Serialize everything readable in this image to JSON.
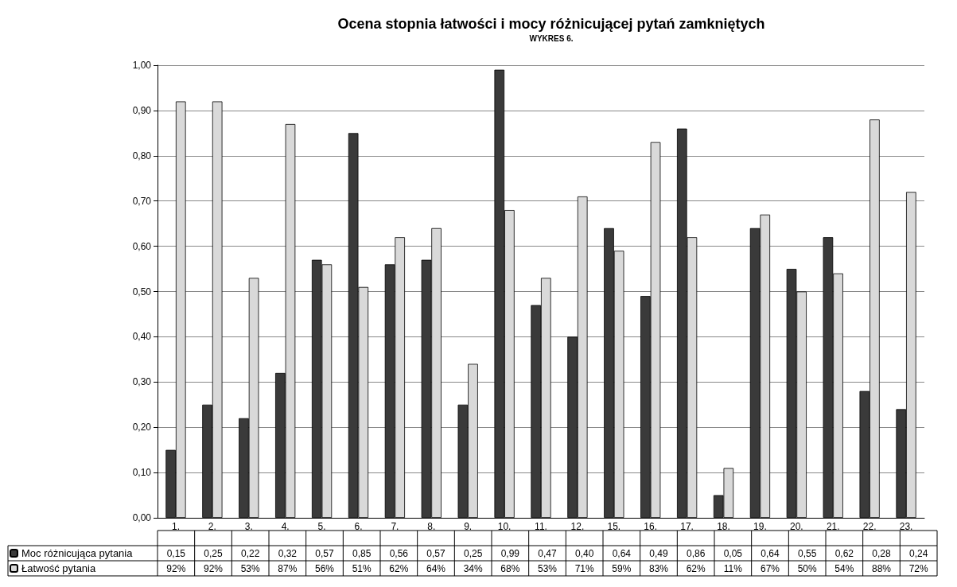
{
  "chart_data": {
    "type": "bar",
    "title": "Ocena stopnia łatwości i mocy różnicującej pytań zamkniętych",
    "subtitle": "WYKRES 6.",
    "categories": [
      "1.",
      "2.",
      "3.",
      "4.",
      "5.",
      "6.",
      "7.",
      "8.",
      "9.",
      "10.",
      "11.",
      "12.",
      "15.",
      "16.",
      "17.",
      "18.",
      "19.",
      "20.",
      "21.",
      "22.",
      "23."
    ],
    "series": [
      {
        "name": "Moc różnicująca pytania",
        "color": "#3a3a3a",
        "values": [
          0.15,
          0.25,
          0.22,
          0.32,
          0.57,
          0.85,
          0.56,
          0.57,
          0.25,
          0.99,
          0.47,
          0.4,
          0.64,
          0.49,
          0.86,
          0.05,
          0.64,
          0.55,
          0.62,
          0.28,
          0.24
        ],
        "value_labels": [
          "0,15",
          "0,25",
          "0,22",
          "0,32",
          "0,57",
          "0,85",
          "0,56",
          "0,57",
          "0,25",
          "0,99",
          "0,47",
          "0,40",
          "0,64",
          "0,49",
          "0,86",
          "0,05",
          "0,64",
          "0,55",
          "0,62",
          "0,28",
          "0,24"
        ]
      },
      {
        "name": "Łatwość pytania",
        "color": "#d9d9d9",
        "values": [
          0.92,
          0.92,
          0.53,
          0.87,
          0.56,
          0.51,
          0.62,
          0.64,
          0.34,
          0.68,
          0.53,
          0.71,
          0.59,
          0.83,
          0.62,
          0.11,
          0.67,
          0.5,
          0.54,
          0.88,
          0.72
        ],
        "value_labels": [
          "92%",
          "92%",
          "53%",
          "87%",
          "56%",
          "51%",
          "62%",
          "64%",
          "34%",
          "68%",
          "53%",
          "71%",
          "59%",
          "83%",
          "62%",
          "11%",
          "67%",
          "50%",
          "54%",
          "88%",
          "72%"
        ]
      }
    ],
    "ylim": [
      0,
      1
    ],
    "yticks": [
      {
        "value": 0,
        "label": "0,00"
      },
      {
        "value": 0.1,
        "label": "0,10"
      },
      {
        "value": 0.2,
        "label": "0,20"
      },
      {
        "value": 0.3,
        "label": "0,30"
      },
      {
        "value": 0.4,
        "label": "0,40"
      },
      {
        "value": 0.5,
        "label": "0,50"
      },
      {
        "value": 0.6,
        "label": "0,60"
      },
      {
        "value": 0.7,
        "label": "0,70"
      },
      {
        "value": 0.8,
        "label": "0,80"
      },
      {
        "value": 0.9,
        "label": "0,90"
      },
      {
        "value": 1,
        "label": "1,00"
      }
    ],
    "grid": "y",
    "legend": "bottom left"
  }
}
